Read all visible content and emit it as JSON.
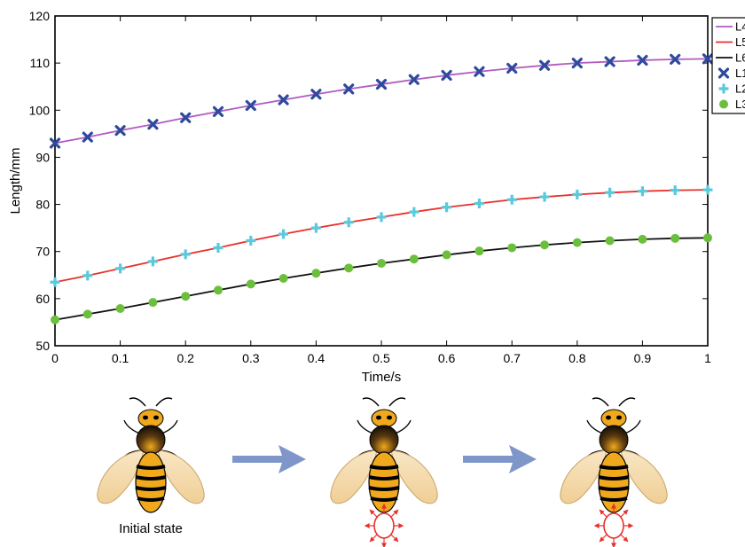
{
  "chart_data": {
    "type": "line",
    "xlabel": "Time/s",
    "ylabel": "Length/mm",
    "xlim": [
      0,
      1
    ],
    "ylim": [
      50,
      120
    ],
    "x_ticks": [
      0,
      0.1,
      0.2,
      0.3,
      0.4,
      0.5,
      0.6,
      0.7,
      0.8,
      0.9,
      1
    ],
    "x_tick_labels": [
      "0",
      "0.1",
      "0.2",
      "0.3",
      "0.4",
      "0.5",
      "0.6",
      "0.7",
      "0.8",
      "0.9",
      "1"
    ],
    "y_ticks": [
      50,
      60,
      70,
      80,
      90,
      100,
      110,
      120
    ],
    "y_tick_labels": [
      "50",
      "60",
      "70",
      "80",
      "90",
      "100",
      "110",
      "120"
    ],
    "grid": false,
    "legend_position": "top-right",
    "x": [
      0,
      0.05,
      0.1,
      0.15,
      0.2,
      0.25,
      0.3,
      0.35,
      0.4,
      0.45,
      0.5,
      0.55,
      0.6,
      0.65,
      0.7,
      0.75,
      0.8,
      0.85,
      0.9,
      0.95,
      1
    ],
    "series": [
      {
        "name": "L4",
        "style": "line",
        "color": "#b05cc0",
        "values": [
          93.0,
          94.3,
          95.7,
          97.0,
          98.4,
          99.7,
          101.0,
          102.2,
          103.4,
          104.5,
          105.5,
          106.5,
          107.4,
          108.2,
          108.9,
          109.5,
          110.0,
          110.3,
          110.6,
          110.8,
          110.9
        ]
      },
      {
        "name": "L5",
        "style": "line",
        "color": "#e8302a",
        "values": [
          63.5,
          64.9,
          66.4,
          67.9,
          69.4,
          70.8,
          72.3,
          73.7,
          75.0,
          76.2,
          77.3,
          78.4,
          79.4,
          80.2,
          81.0,
          81.6,
          82.1,
          82.5,
          82.8,
          83.0,
          83.1
        ]
      },
      {
        "name": "L6",
        "style": "line",
        "color": "#111111",
        "values": [
          55.5,
          56.7,
          57.9,
          59.2,
          60.5,
          61.8,
          63.1,
          64.3,
          65.4,
          66.5,
          67.5,
          68.4,
          69.3,
          70.1,
          70.8,
          71.4,
          71.9,
          72.3,
          72.6,
          72.8,
          72.9
        ]
      },
      {
        "name": "L1",
        "style": "marker",
        "marker": "x",
        "color": "#2e4a9e",
        "values": [
          93.0,
          94.3,
          95.7,
          97.0,
          98.4,
          99.7,
          101.0,
          102.2,
          103.4,
          104.5,
          105.5,
          106.5,
          107.4,
          108.2,
          108.9,
          109.5,
          110.0,
          110.3,
          110.6,
          110.8,
          110.9
        ]
      },
      {
        "name": "L2",
        "style": "marker",
        "marker": "plus",
        "color": "#5cc8dc",
        "values": [
          63.5,
          64.9,
          66.4,
          67.9,
          69.4,
          70.8,
          72.3,
          73.7,
          75.0,
          76.2,
          77.3,
          78.4,
          79.4,
          80.2,
          81.0,
          81.6,
          82.1,
          82.5,
          82.8,
          83.0,
          83.1
        ]
      },
      {
        "name": "L3",
        "style": "marker",
        "marker": "circle",
        "color": "#6cbf3c",
        "values": [
          55.5,
          56.7,
          57.9,
          59.2,
          60.5,
          61.8,
          63.1,
          64.3,
          65.4,
          66.5,
          67.5,
          68.4,
          69.3,
          70.1,
          70.8,
          71.4,
          71.9,
          72.3,
          72.6,
          72.8,
          72.9
        ]
      }
    ]
  },
  "illustration": {
    "caption_initial": "Initial state",
    "arrow_color": "#7f96c8",
    "heat_icon_color": "#e8302a",
    "bee_body_color": "#f0a81c",
    "wing_color": "#f5dcae"
  }
}
